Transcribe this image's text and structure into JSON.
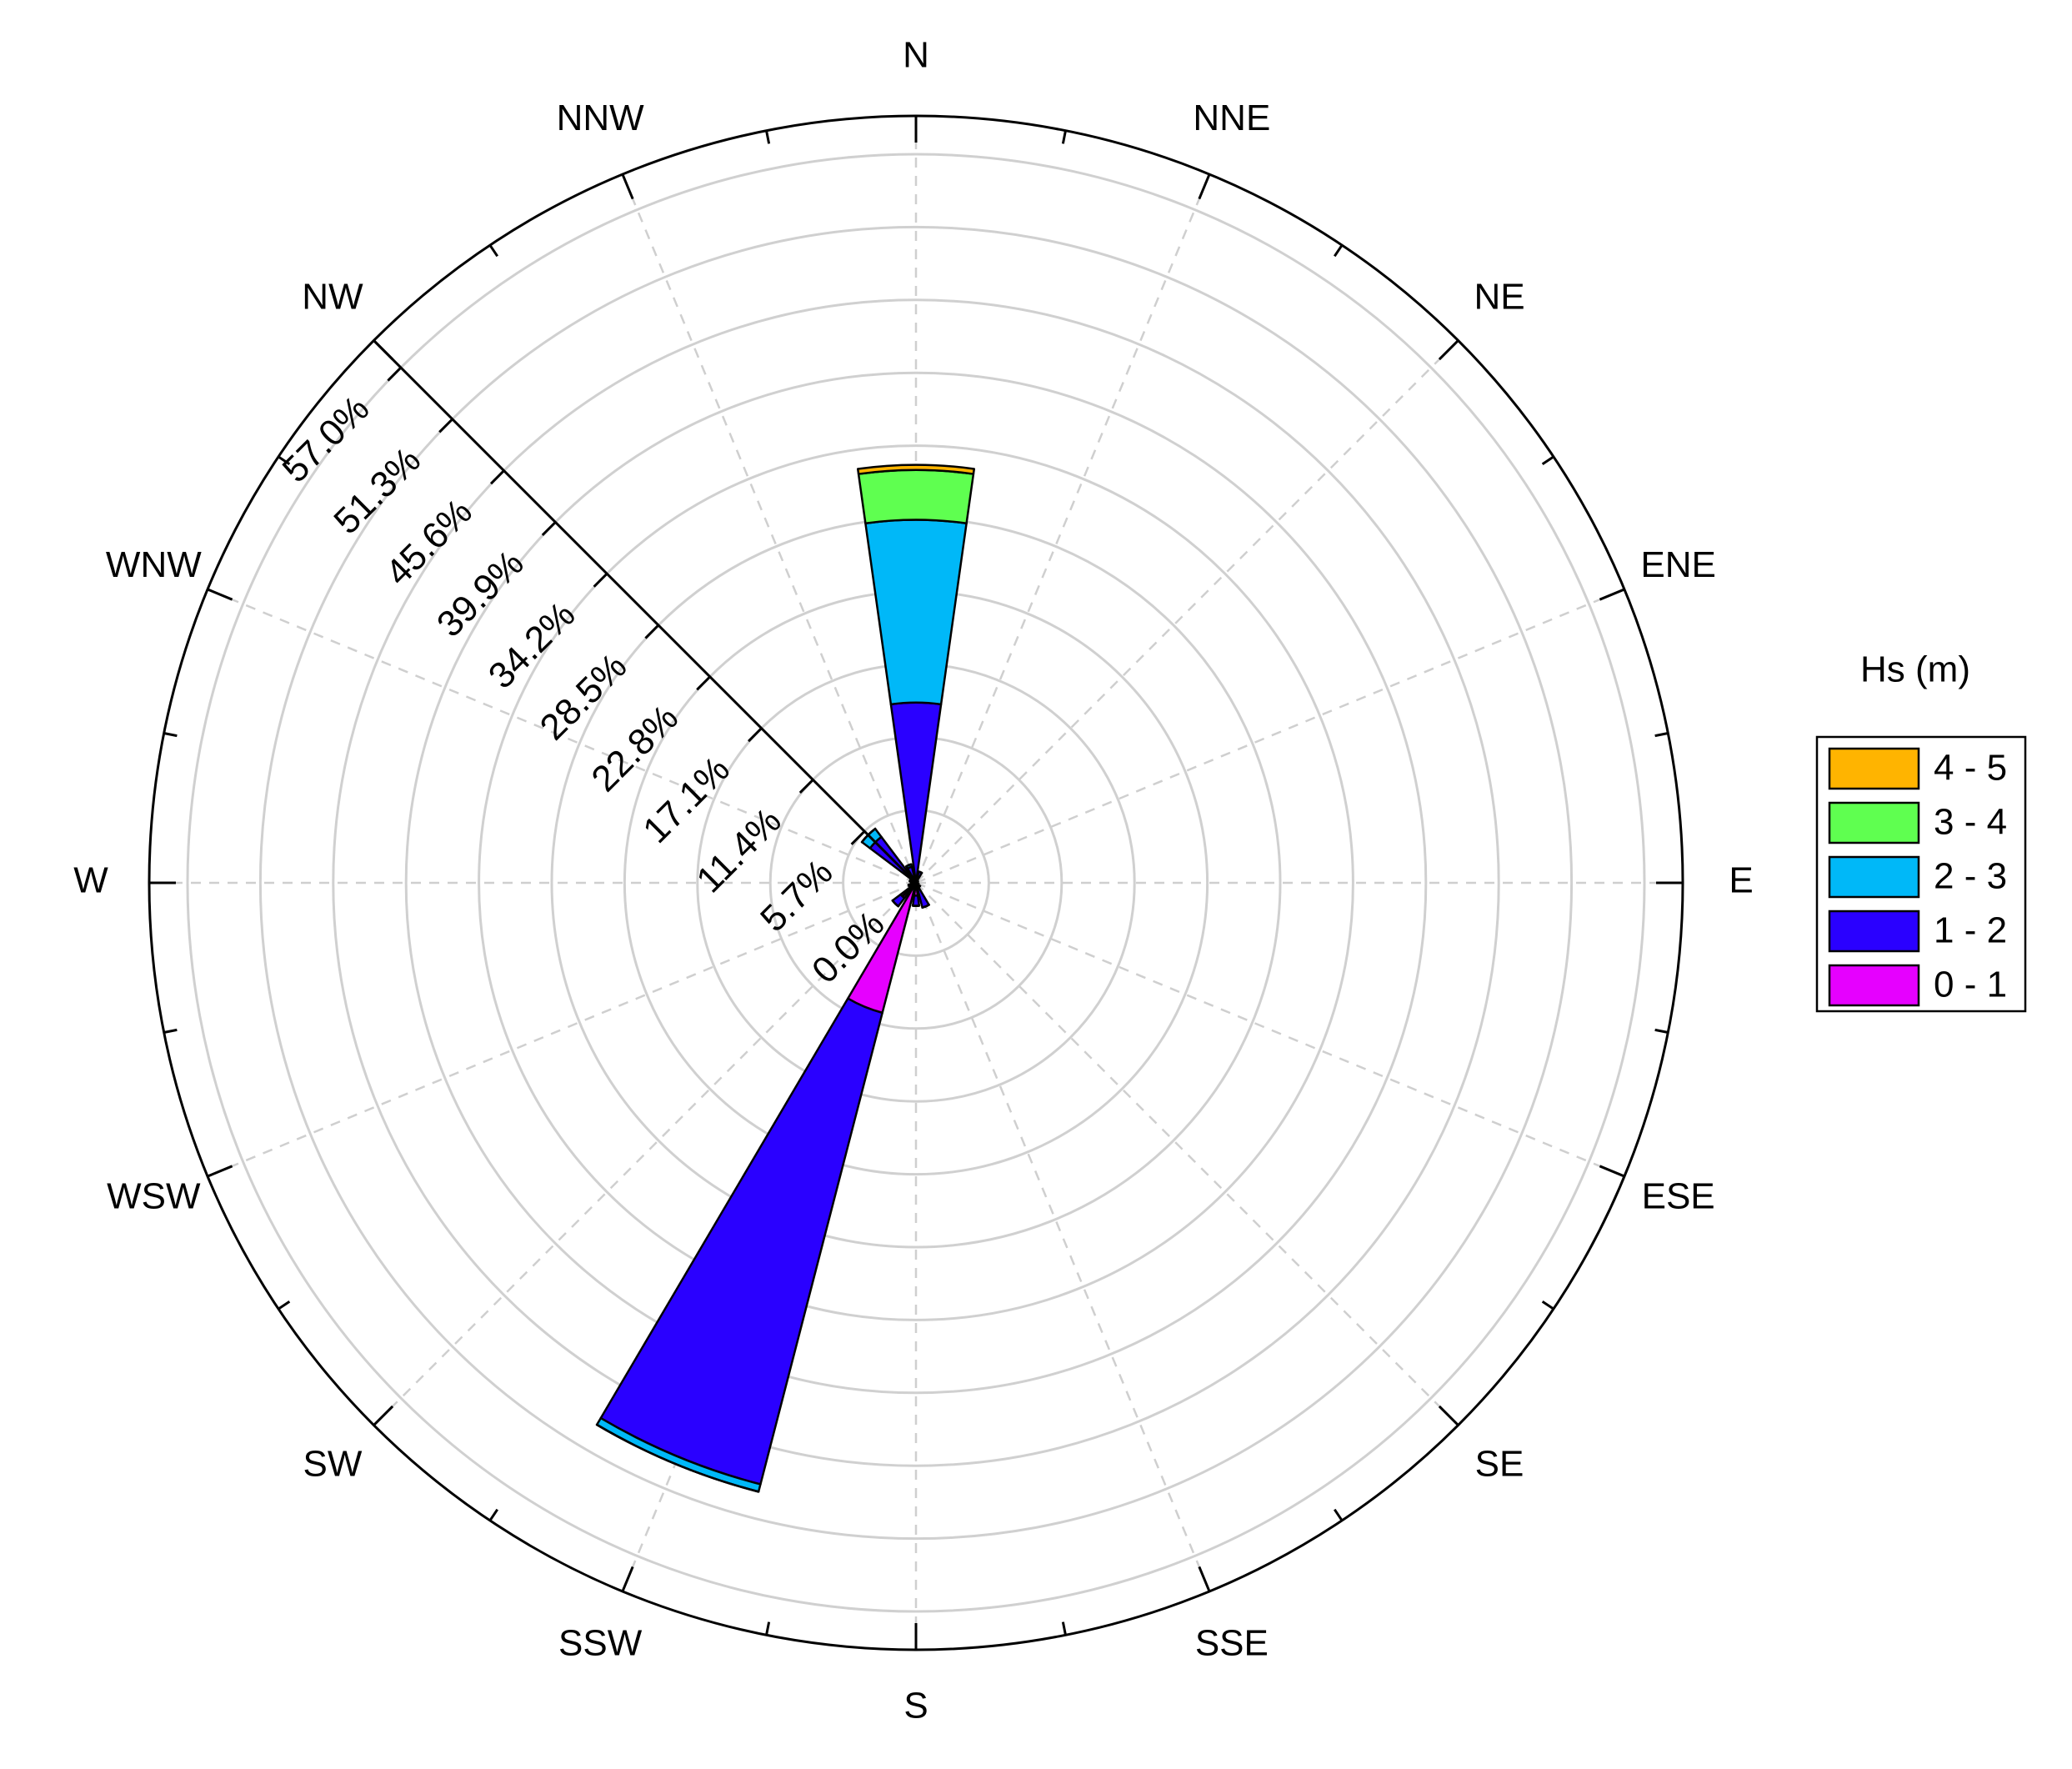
{
  "chart_data": {
    "type": "windrose",
    "categories": [
      "N",
      "NNE",
      "NE",
      "ENE",
      "E",
      "ESE",
      "SE",
      "SSE",
      "S",
      "SSW",
      "SW",
      "WSW",
      "W",
      "WNW",
      "NW",
      "NNW"
    ],
    "legend_title": "Hs (m)",
    "series": [
      {
        "name": "0 - 1",
        "color": "#e600ff",
        "values": [
          0.2,
          0.1,
          0,
          0,
          0,
          0,
          0.1,
          0.5,
          1.0,
          10.5,
          1.5,
          0.3,
          0.2,
          0.2,
          0.5,
          0.3
        ]
      },
      {
        "name": "1 - 2",
        "color": "#2a00ff",
        "values": [
          13.9,
          0.8,
          0.2,
          0.1,
          0.1,
          0.2,
          0.3,
          1.5,
          0.8,
          38.1,
          0.8,
          0.3,
          0.2,
          0.3,
          4.0,
          1.0
        ]
      },
      {
        "name": "2 - 3",
        "color": "#00b8f8",
        "values": [
          14.3,
          0,
          0,
          0,
          0,
          0,
          0,
          0,
          0,
          0.6,
          0,
          0,
          0,
          0,
          0.8,
          0.2
        ]
      },
      {
        "name": "3 - 4",
        "color": "#5fff50",
        "values": [
          3.9,
          0,
          0,
          0,
          0,
          0,
          0,
          0,
          0,
          0,
          0,
          0,
          0,
          0,
          0,
          0
        ]
      },
      {
        "name": "4 - 5",
        "color": "#ffb400",
        "values": [
          0.4,
          0,
          0,
          0,
          0,
          0,
          0,
          0,
          0,
          0,
          0,
          0,
          0,
          0,
          0,
          0
        ]
      }
    ],
    "rlim": [
      0,
      60
    ],
    "rticks": [
      {
        "value": 0,
        "label": "0.0%"
      },
      {
        "value": 5.7,
        "label": "5.7%"
      },
      {
        "value": 11.4,
        "label": "11.4%"
      },
      {
        "value": 17.1,
        "label": "17.1%"
      },
      {
        "value": 22.8,
        "label": "22.8%"
      },
      {
        "value": 28.5,
        "label": "28.5%"
      },
      {
        "value": 34.2,
        "label": "34.2%"
      },
      {
        "value": 39.9,
        "label": "39.9%"
      },
      {
        "value": 45.6,
        "label": "45.6%"
      },
      {
        "value": 51.3,
        "label": "51.3%"
      },
      {
        "value": 57.0,
        "label": "57.0%"
      }
    ],
    "grid": true
  }
}
